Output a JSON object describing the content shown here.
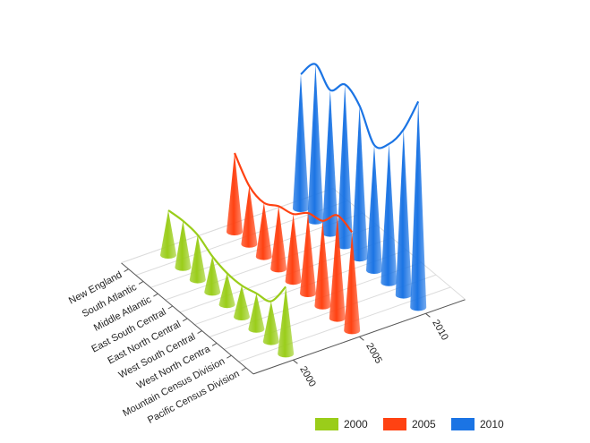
{
  "chart_data": {
    "type": "cone3d",
    "categories": [
      "New England",
      "South Atlantic",
      "Middle Atlantic",
      "East South Central",
      "East North Central",
      "West South Central",
      "West North Centra",
      "Mountain Census Division",
      "Pacific Census Division"
    ],
    "series": [
      {
        "name": "2000",
        "color": "#9acd1a",
        "values": [
          50,
          52,
          50,
          40,
          35,
          35,
          40,
          45,
          75
        ]
      },
      {
        "name": "2005",
        "color": "#ff4212",
        "values": [
          88,
          65,
          60,
          70,
          75,
          90,
          95,
          115,
          110
        ]
      },
      {
        "name": "2010",
        "color": "#1b74e4",
        "values": [
          150,
          175,
          160,
          180,
          170,
          140,
          155,
          185,
          230
        ]
      }
    ],
    "legend": "bottom"
  }
}
